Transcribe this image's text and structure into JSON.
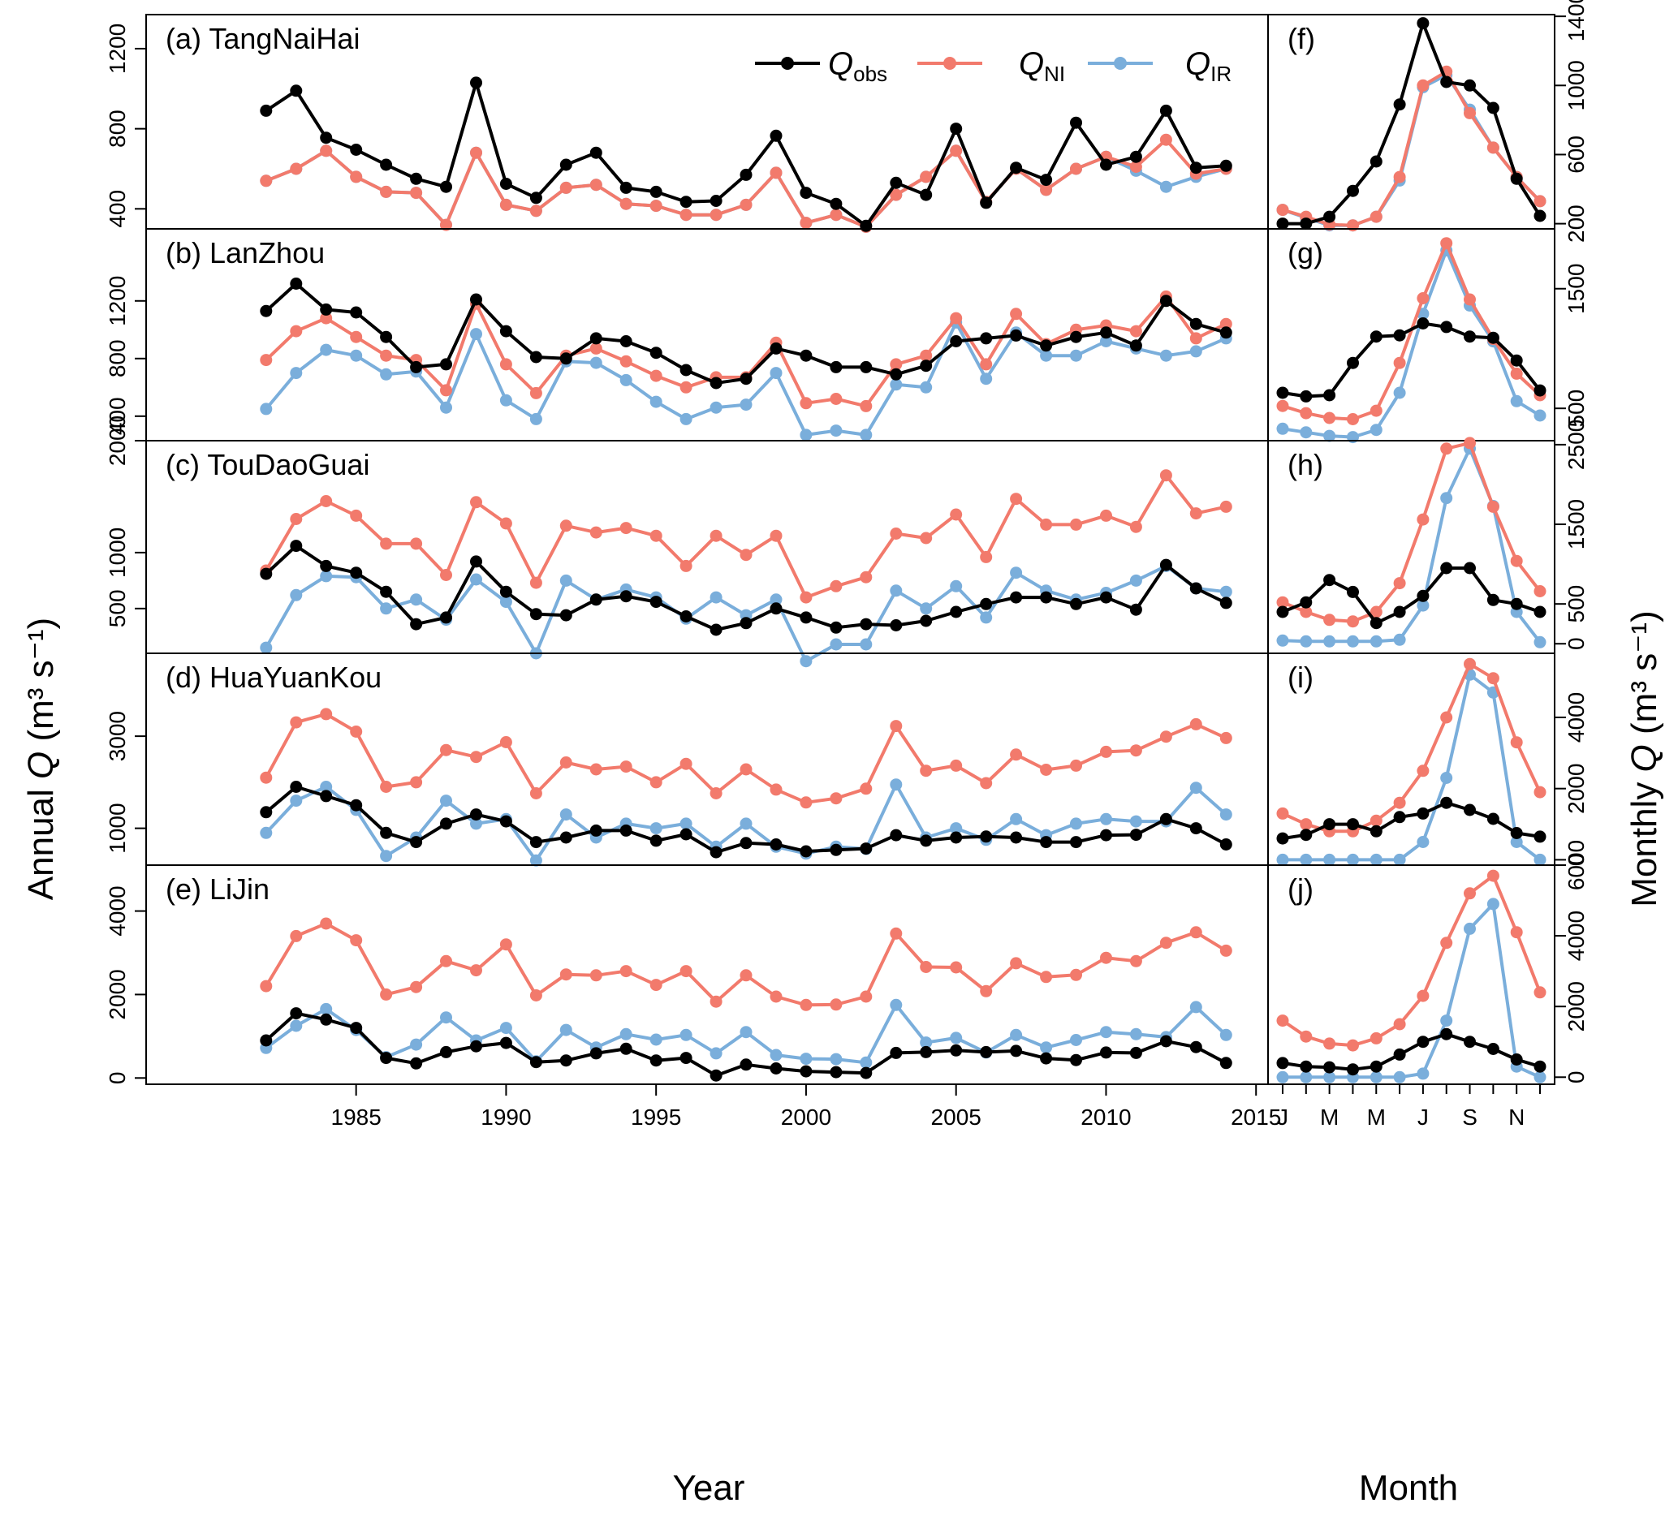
{
  "chart_data": {
    "type": "line",
    "colors": {
      "Q_obs": "#000000",
      "Q_NI": "#f27a6c",
      "Q_IR": "#7aaedb"
    },
    "legend": [
      {
        "key": "Q_obs",
        "main": "Q",
        "sub": "obs"
      },
      {
        "key": "Q_NI",
        "main": "Q",
        "sub": "NI"
      },
      {
        "key": "Q_IR",
        "main": "Q",
        "sub": "IR"
      }
    ],
    "ylabel_left": {
      "prefix": "Annual ",
      "q": "Q",
      "unit": " (m³ s⁻¹)"
    },
    "ylabel_right": {
      "prefix": "Monthly ",
      "q": "Q",
      "unit": " (m³ s⁻¹)"
    },
    "xlabel_annual": "Year",
    "xlabel_monthly": "Month",
    "annual_x": [
      1982,
      1983,
      1984,
      1985,
      1986,
      1987,
      1988,
      1989,
      1990,
      1991,
      1992,
      1993,
      1994,
      1995,
      1996,
      1997,
      1998,
      1999,
      2000,
      2001,
      2002,
      2003,
      2004,
      2005,
      2006,
      2007,
      2008,
      2009,
      2010,
      2011,
      2012,
      2013,
      2014
    ],
    "annual_xticks": [
      1985,
      1990,
      1995,
      2000,
      2005,
      2010,
      2015
    ],
    "annual_xlim": [
      1978,
      2015.4
    ],
    "month_ticks": [
      "J",
      "M",
      "M",
      "J",
      "S",
      "N"
    ],
    "annual": [
      {
        "label": "(a) TangNaiHai",
        "ylim": [
          300,
          1370
        ],
        "yticks": [
          400,
          800,
          1200
        ],
        "series": {
          "Q_obs": [
            890,
            990,
            755,
            695,
            620,
            550,
            510,
            1030,
            525,
            455,
            620,
            680,
            505,
            485,
            435,
            440,
            570,
            765,
            480,
            425,
            315,
            530,
            470,
            800,
            430,
            605,
            545,
            830,
            620,
            660,
            890,
            605,
            615
          ],
          "Q_NI": [
            540,
            600,
            690,
            560,
            485,
            480,
            320,
            680,
            420,
            390,
            505,
            520,
            425,
            415,
            370,
            370,
            420,
            580,
            330,
            370,
            310,
            470,
            560,
            690,
            435,
            600,
            495,
            600,
            660,
            610,
            745,
            575,
            600
          ],
          "Q_IR": [
            540,
            600,
            690,
            560,
            485,
            480,
            320,
            680,
            420,
            390,
            505,
            520,
            425,
            415,
            370,
            370,
            420,
            580,
            330,
            370,
            310,
            470,
            560,
            690,
            435,
            600,
            495,
            600,
            660,
            590,
            510,
            560,
            600
          ]
        }
      },
      {
        "label": "(b) LanZhou",
        "ylim": [
          230,
          1700
        ],
        "yticks": [
          400,
          800,
          1200
        ],
        "series": {
          "Q_obs": [
            1130,
            1320,
            1140,
            1120,
            950,
            740,
            760,
            1210,
            990,
            810,
            800,
            940,
            920,
            840,
            720,
            630,
            660,
            870,
            820,
            740,
            740,
            690,
            750,
            920,
            940,
            960,
            890,
            950,
            980,
            890,
            1200,
            1040,
            980
          ],
          "Q_NI": [
            790,
            990,
            1080,
            950,
            820,
            790,
            580,
            1180,
            760,
            560,
            820,
            870,
            780,
            680,
            600,
            670,
            670,
            910,
            490,
            520,
            470,
            760,
            820,
            1080,
            760,
            1110,
            900,
            1000,
            1030,
            990,
            1230,
            940,
            1040
          ],
          "Q_IR": [
            450,
            700,
            860,
            820,
            690,
            710,
            460,
            970,
            510,
            380,
            780,
            770,
            650,
            500,
            380,
            460,
            480,
            700,
            270,
            300,
            270,
            620,
            600,
            1050,
            660,
            980,
            820,
            820,
            920,
            870,
            820,
            850,
            940
          ]
        }
      },
      {
        "label": "(c) TouDaoGuai",
        "ylim": [
          100,
          2000
        ],
        "yticks": [
          500,
          1000,
          2000
        ],
        "series": {
          "Q_obs": [
            810,
            1060,
            880,
            820,
            650,
            360,
            420,
            920,
            650,
            450,
            440,
            580,
            610,
            560,
            430,
            310,
            370,
            500,
            420,
            330,
            360,
            350,
            390,
            470,
            540,
            600,
            600,
            540,
            600,
            490,
            890,
            680,
            550
          ],
          "Q_NI": [
            840,
            1300,
            1460,
            1330,
            1080,
            1080,
            800,
            1450,
            1260,
            730,
            1240,
            1180,
            1220,
            1150,
            880,
            1150,
            980,
            1150,
            600,
            700,
            780,
            1170,
            1130,
            1340,
            960,
            1480,
            1250,
            1250,
            1330,
            1230,
            1690,
            1350,
            1410
          ],
          "Q_IR": [
            150,
            620,
            790,
            780,
            500,
            580,
            400,
            760,
            560,
            100,
            750,
            580,
            670,
            600,
            410,
            600,
            440,
            580,
            30,
            180,
            180,
            660,
            500,
            700,
            420,
            820,
            660,
            580,
            640,
            750,
            880,
            680,
            650
          ]
        }
      },
      {
        "label": "(d) HuaYuanKou",
        "ylim": [
          200,
          4800
        ],
        "yticks": [
          1000,
          3000
        ],
        "series": {
          "Q_obs": [
            1350,
            1900,
            1700,
            1500,
            900,
            700,
            1100,
            1300,
            1150,
            700,
            800,
            950,
            950,
            730,
            870,
            480,
            680,
            650,
            500,
            530,
            560,
            850,
            730,
            800,
            820,
            800,
            700,
            700,
            850,
            860,
            1200,
            1000,
            650
          ],
          "Q_NI": [
            2100,
            3300,
            3480,
            3100,
            1900,
            2000,
            2700,
            2550,
            2870,
            1760,
            2430,
            2280,
            2340,
            2000,
            2400,
            1760,
            2280,
            1840,
            1560,
            1650,
            1860,
            3220,
            2250,
            2360,
            1980,
            2600,
            2270,
            2360,
            2660,
            2690,
            2990,
            3260,
            2960
          ],
          "Q_IR": [
            900,
            1600,
            1900,
            1400,
            400,
            800,
            1600,
            1100,
            1200,
            300,
            1300,
            800,
            1100,
            1000,
            1100,
            600,
            1100,
            600,
            450,
            600,
            550,
            1950,
            800,
            1000,
            750,
            1200,
            850,
            1100,
            1200,
            1150,
            1150,
            1880,
            1300
          ]
        }
      },
      {
        "label": "(e) LiJin",
        "ylim": [
          -150,
          5100
        ],
        "yticks": [
          0,
          2000,
          4000
        ],
        "series": {
          "Q_obs": [
            900,
            1550,
            1400,
            1200,
            480,
            350,
            620,
            760,
            840,
            380,
            420,
            590,
            700,
            420,
            480,
            60,
            320,
            230,
            160,
            140,
            120,
            600,
            620,
            660,
            620,
            650,
            470,
            430,
            610,
            600,
            880,
            740,
            360
          ],
          "Q_NI": [
            2200,
            3400,
            3700,
            3300,
            2000,
            2180,
            2800,
            2580,
            3200,
            1980,
            2480,
            2460,
            2560,
            2230,
            2560,
            1830,
            2460,
            1950,
            1750,
            1760,
            1950,
            3460,
            2660,
            2650,
            2080,
            2750,
            2420,
            2470,
            2880,
            2800,
            3240,
            3490,
            3050
          ],
          "Q_IR": [
            720,
            1250,
            1650,
            1150,
            500,
            800,
            1450,
            900,
            1200,
            400,
            1150,
            730,
            1050,
            920,
            1030,
            590,
            1100,
            550,
            460,
            450,
            370,
            1750,
            850,
            960,
            610,
            1030,
            730,
            910,
            1100,
            1050,
            980,
            1700,
            1030
          ]
        }
      }
    ],
    "monthly": [
      {
        "label": "(f)",
        "ylim": [
          170,
          1410
        ],
        "yticks": [
          200,
          600,
          1000,
          1400
        ],
        "series": {
          "Q_obs": [
            200,
            200,
            240,
            390,
            560,
            890,
            1360,
            1020,
            1000,
            870,
            460,
            245
          ],
          "Q_NI": [
            280,
            240,
            195,
            190,
            240,
            470,
            1000,
            1080,
            840,
            640,
            470,
            330
          ],
          "Q_IR": [
            280,
            235,
            190,
            190,
            240,
            450,
            990,
            1060,
            860,
            640,
            470,
            330
          ]
        }
      },
      {
        "label": "(g)",
        "ylim": [
          230,
          2000
        ],
        "yticks": [
          500,
          1500
        ],
        "series": {
          "Q_obs": [
            630,
            600,
            610,
            880,
            1100,
            1110,
            1210,
            1180,
            1100,
            1090,
            900,
            650
          ],
          "Q_NI": [
            520,
            460,
            420,
            410,
            480,
            880,
            1420,
            1880,
            1410,
            1080,
            790,
            610
          ],
          "Q_IR": [
            330,
            300,
            270,
            260,
            320,
            630,
            1290,
            1820,
            1360,
            1060,
            560,
            440
          ]
        }
      },
      {
        "label": "(h)",
        "ylim": [
          -120,
          2550
        ],
        "yticks": [
          0,
          500,
          1500,
          2500
        ],
        "series": {
          "Q_obs": [
            400,
            520,
            800,
            650,
            260,
            400,
            600,
            950,
            950,
            550,
            500,
            400
          ],
          "Q_NI": [
            520,
            400,
            300,
            280,
            400,
            760,
            1560,
            2450,
            2520,
            1720,
            1040,
            660
          ],
          "Q_IR": [
            40,
            30,
            30,
            30,
            30,
            50,
            480,
            1830,
            2450,
            1730,
            400,
            20
          ]
        }
      },
      {
        "label": "(i)",
        "ylim": [
          -150,
          5800
        ],
        "yticks": [
          0,
          2000,
          4000
        ],
        "series": {
          "Q_obs": [
            600,
            700,
            1000,
            1000,
            800,
            1200,
            1300,
            1600,
            1400,
            1150,
            750,
            650
          ],
          "Q_NI": [
            1300,
            1000,
            800,
            800,
            1100,
            1600,
            2500,
            4000,
            5500,
            5100,
            3300,
            1900
          ],
          "Q_IR": [
            0,
            0,
            0,
            0,
            0,
            0,
            500,
            2300,
            5200,
            4700,
            500,
            0
          ]
        }
      },
      {
        "label": "(j)",
        "ylim": [
          -200,
          6000
        ],
        "yticks": [
          0,
          2000,
          4000,
          6000
        ],
        "series": {
          "Q_obs": [
            400,
            300,
            280,
            220,
            300,
            640,
            1000,
            1220,
            1000,
            800,
            500,
            300
          ],
          "Q_NI": [
            1600,
            1150,
            950,
            900,
            1100,
            1500,
            2300,
            3800,
            5200,
            5700,
            4100,
            2400
          ],
          "Q_IR": [
            0,
            0,
            0,
            0,
            0,
            0,
            100,
            1600,
            4200,
            4900,
            300,
            0
          ]
        }
      }
    ]
  }
}
